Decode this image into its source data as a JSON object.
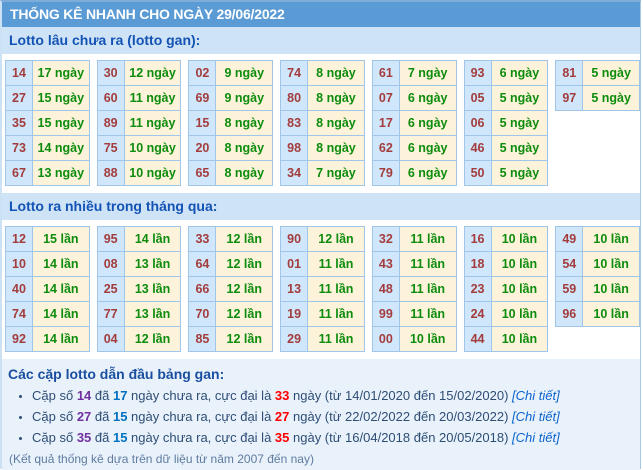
{
  "header": {
    "title": "THỐNG KÊ NHANH CHO NGÀY 29/06/2022"
  },
  "section_gan": {
    "heading": "Lotto lâu chưa ra (lotto gan):",
    "unit": "ngày",
    "columns": [
      [
        {
          "n": "14",
          "v": "17 ngày"
        },
        {
          "n": "27",
          "v": "15 ngày"
        },
        {
          "n": "35",
          "v": "15 ngày"
        },
        {
          "n": "73",
          "v": "14 ngày"
        },
        {
          "n": "67",
          "v": "13 ngày"
        }
      ],
      [
        {
          "n": "30",
          "v": "12 ngày"
        },
        {
          "n": "60",
          "v": "11 ngày"
        },
        {
          "n": "89",
          "v": "11 ngày"
        },
        {
          "n": "75",
          "v": "10 ngày"
        },
        {
          "n": "88",
          "v": "10 ngày"
        }
      ],
      [
        {
          "n": "02",
          "v": "9 ngày"
        },
        {
          "n": "69",
          "v": "9 ngày"
        },
        {
          "n": "15",
          "v": "8 ngày"
        },
        {
          "n": "20",
          "v": "8 ngày"
        },
        {
          "n": "65",
          "v": "8 ngày"
        }
      ],
      [
        {
          "n": "74",
          "v": "8 ngày"
        },
        {
          "n": "80",
          "v": "8 ngày"
        },
        {
          "n": "83",
          "v": "8 ngày"
        },
        {
          "n": "98",
          "v": "8 ngày"
        },
        {
          "n": "34",
          "v": "7 ngày"
        }
      ],
      [
        {
          "n": "61",
          "v": "7 ngày"
        },
        {
          "n": "07",
          "v": "6 ngày"
        },
        {
          "n": "17",
          "v": "6 ngày"
        },
        {
          "n": "62",
          "v": "6 ngày"
        },
        {
          "n": "79",
          "v": "6 ngày"
        }
      ],
      [
        {
          "n": "93",
          "v": "6 ngày"
        },
        {
          "n": "05",
          "v": "5 ngày"
        },
        {
          "n": "06",
          "v": "5 ngày"
        },
        {
          "n": "46",
          "v": "5 ngày"
        },
        {
          "n": "50",
          "v": "5 ngày"
        }
      ],
      [
        {
          "n": "81",
          "v": "5 ngày"
        },
        {
          "n": "97",
          "v": "5 ngày"
        }
      ]
    ]
  },
  "section_freq": {
    "heading": "Lotto ra nhiều trong tháng qua:",
    "unit": "lần",
    "columns": [
      [
        {
          "n": "12",
          "v": "15 lần"
        },
        {
          "n": "10",
          "v": "14 lần"
        },
        {
          "n": "40",
          "v": "14 lần"
        },
        {
          "n": "74",
          "v": "14 lần"
        },
        {
          "n": "92",
          "v": "14 lần"
        }
      ],
      [
        {
          "n": "95",
          "v": "14 lần"
        },
        {
          "n": "08",
          "v": "13 lần"
        },
        {
          "n": "25",
          "v": "13 lần"
        },
        {
          "n": "77",
          "v": "13 lần"
        },
        {
          "n": "04",
          "v": "12 lần"
        }
      ],
      [
        {
          "n": "33",
          "v": "12 lần"
        },
        {
          "n": "64",
          "v": "12 lần"
        },
        {
          "n": "66",
          "v": "12 lần"
        },
        {
          "n": "70",
          "v": "12 lần"
        },
        {
          "n": "85",
          "v": "12 lần"
        }
      ],
      [
        {
          "n": "90",
          "v": "12 lần"
        },
        {
          "n": "01",
          "v": "11 lần"
        },
        {
          "n": "13",
          "v": "11 lần"
        },
        {
          "n": "19",
          "v": "11 lần"
        },
        {
          "n": "29",
          "v": "11 lần"
        }
      ],
      [
        {
          "n": "32",
          "v": "11 lần"
        },
        {
          "n": "43",
          "v": "11 lần"
        },
        {
          "n": "48",
          "v": "11 lần"
        },
        {
          "n": "99",
          "v": "11 lần"
        },
        {
          "n": "00",
          "v": "10 lần"
        }
      ],
      [
        {
          "n": "16",
          "v": "10 lần"
        },
        {
          "n": "18",
          "v": "10 lần"
        },
        {
          "n": "23",
          "v": "10 lần"
        },
        {
          "n": "24",
          "v": "10 lần"
        },
        {
          "n": "44",
          "v": "10 lần"
        }
      ],
      [
        {
          "n": "49",
          "v": "10 lần"
        },
        {
          "n": "54",
          "v": "10 lần"
        },
        {
          "n": "59",
          "v": "10 lần"
        },
        {
          "n": "96",
          "v": "10 lần"
        }
      ]
    ]
  },
  "leaders": {
    "heading": "Các cặp lotto dẫn đầu bảng gan:",
    "items": [
      {
        "prefix": "Cặp số",
        "pair": "14",
        "mid1": "đã",
        "days": "17",
        "mid2": "ngày chưa ra, cực đại là",
        "max": "33",
        "mid3": "ngày",
        "range": "(từ 14/01/2020 đến 15/02/2020)",
        "link": "[Chi tiết]"
      },
      {
        "prefix": "Cặp số",
        "pair": "27",
        "mid1": "đã",
        "days": "15",
        "mid2": "ngày chưa ra, cực đại là",
        "max": "27",
        "mid3": "ngày",
        "range": "(từ 22/02/2022 đến 20/03/2022)",
        "link": "[Chi tiết]"
      },
      {
        "prefix": "Cặp số",
        "pair": "35",
        "mid1": "đã",
        "days": "15",
        "mid2": "ngày chưa ra, cực đại là",
        "max": "35",
        "mid3": "ngày",
        "range": "(từ 16/04/2018 đến 20/05/2018)",
        "link": "[Chi tiết]"
      }
    ]
  },
  "footer": {
    "note": "(Kết quả thống kê dựa trên dữ liệu từ năm 2007 đến nay)"
  },
  "colors": {
    "title_bar_bg": "#5b9bd5",
    "band_bg": "#cfe3f6",
    "bottom_bg": "#e9f2fb",
    "number_cell_bg": "#cfe6fb",
    "value_cell_bg": "#fcf3da",
    "number_text": "#a33c3c",
    "value_text": "#0d8c0d",
    "heading_text": "#1353b5",
    "pair_text": "#7030a0",
    "days_text": "#0070c0",
    "max_text": "#ff0000",
    "link_text": "#0b63ce"
  }
}
